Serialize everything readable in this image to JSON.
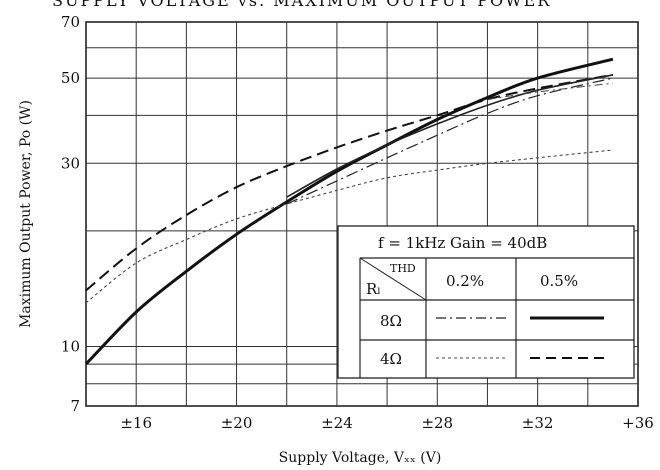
{
  "chart_data": {
    "type": "line",
    "title": "SUPPLY VOLTAGE vs. MAXIMUM OUTPUT POWER",
    "xlabel": "Supply Voltage,  Vₓₓ  (V)",
    "ylabel": "Maximum  Output  Power,  Po  (W)",
    "x_scale": "linear",
    "y_scale": "log",
    "xlim": [
      14,
      36
    ],
    "ylim": [
      7,
      70
    ],
    "x_ticks": [
      {
        "value": 16,
        "label": "±16"
      },
      {
        "value": 20,
        "label": "±20"
      },
      {
        "value": 24,
        "label": "±24"
      },
      {
        "value": 28,
        "label": "±28"
      },
      {
        "value": 32,
        "label": "±32"
      },
      {
        "value": 36,
        "label": "+36"
      }
    ],
    "y_ticks": [
      {
        "value": 7,
        "label": "7"
      },
      {
        "value": 10,
        "label": "10"
      },
      {
        "value": 30,
        "label": "30"
      },
      {
        "value": 50,
        "label": "50"
      },
      {
        "value": 70,
        "label": "70"
      }
    ],
    "grid": true,
    "legend": {
      "placement": "bottom-right",
      "condition": "f = 1kHz   Gain = 40dB",
      "corner_top": "THD",
      "corner_bottom": "Rₗ",
      "columns": [
        "0.2%",
        "0.5%"
      ],
      "rows": [
        "8Ω",
        "4Ω"
      ]
    },
    "series": [
      {
        "load": "8Ω",
        "thd": "0.5%",
        "style": "solid-thick",
        "x": [
          14,
          16,
          18,
          20,
          22,
          24,
          26,
          28,
          30,
          32,
          35
        ],
        "y": [
          9.0,
          12.3,
          15.7,
          19.6,
          23.8,
          28.6,
          33.5,
          39.0,
          44.5,
          50.0,
          56.0
        ]
      },
      {
        "load": "8Ω",
        "thd": "0.2%",
        "style": "dash-dot",
        "x": [
          22,
          24,
          26,
          28,
          30,
          32,
          35
        ],
        "y": [
          23.5,
          27.0,
          31.0,
          35.5,
          40.5,
          45.0,
          50.0
        ]
      },
      {
        "load": "4Ω",
        "thd": "0.5%",
        "style": "dashed",
        "x": [
          14,
          16,
          18,
          20,
          22,
          24,
          26,
          28,
          30,
          32,
          35
        ],
        "y": [
          14.0,
          18.0,
          22.0,
          26.0,
          29.5,
          33.0,
          36.5,
          40.0,
          44.0,
          47.0,
          51.0
        ]
      },
      {
        "load": "4Ω",
        "thd": "0.2%",
        "style": "dotted",
        "x": [
          14,
          16,
          18,
          20,
          22,
          24,
          26,
          28,
          30,
          32,
          35
        ],
        "y": [
          13.0,
          16.5,
          19.0,
          21.5,
          23.5,
          25.5,
          27.5,
          28.8,
          30.0,
          31.0,
          32.5
        ]
      },
      {
        "load": "8Ω",
        "thd": "0.5%",
        "style": "solid-medium",
        "x": [
          22,
          24,
          26,
          28,
          30,
          32,
          35
        ],
        "y": [
          24.5,
          29.0,
          33.5,
          38.0,
          42.5,
          46.5,
          51.0
        ]
      },
      {
        "load": "4Ω",
        "thd": "0.2%",
        "style": "dash-dot-light",
        "x": [
          30,
          32,
          35
        ],
        "y": [
          44.0,
          46.0,
          48.5
        ]
      }
    ]
  }
}
